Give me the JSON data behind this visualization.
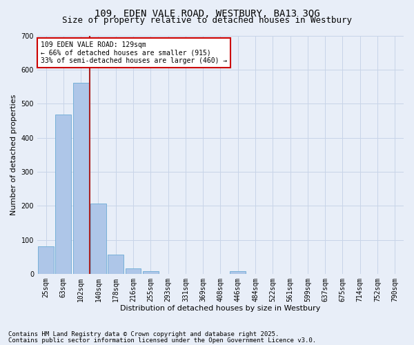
{
  "title_line1": "109, EDEN VALE ROAD, WESTBURY, BA13 3QG",
  "title_line2": "Size of property relative to detached houses in Westbury",
  "xlabel": "Distribution of detached houses by size in Westbury",
  "ylabel": "Number of detached properties",
  "categories": [
    "25sqm",
    "63sqm",
    "102sqm",
    "140sqm",
    "178sqm",
    "216sqm",
    "255sqm",
    "293sqm",
    "331sqm",
    "369sqm",
    "408sqm",
    "446sqm",
    "484sqm",
    "522sqm",
    "561sqm",
    "599sqm",
    "637sqm",
    "675sqm",
    "714sqm",
    "752sqm",
    "790sqm"
  ],
  "values": [
    80,
    468,
    562,
    207,
    57,
    15,
    7,
    0,
    0,
    0,
    0,
    7,
    0,
    0,
    0,
    0,
    0,
    0,
    0,
    0,
    0
  ],
  "bar_color": "#aec6e8",
  "bar_edge_color": "#6aaad4",
  "grid_color": "#c8d4e8",
  "background_color": "#e8eef8",
  "vline_color": "#aa2222",
  "annotation_text": "109 EDEN VALE ROAD: 129sqm\n← 66% of detached houses are smaller (915)\n33% of semi-detached houses are larger (460) →",
  "annotation_box_color": "white",
  "annotation_box_edge": "#cc0000",
  "ylim": [
    0,
    700
  ],
  "yticks": [
    0,
    100,
    200,
    300,
    400,
    500,
    600,
    700
  ],
  "title_fontsize": 10,
  "subtitle_fontsize": 9,
  "axis_label_fontsize": 8,
  "tick_fontsize": 7,
  "annotation_fontsize": 7,
  "footer_fontsize": 6.5,
  "footer_line1": "Contains HM Land Registry data © Crown copyright and database right 2025.",
  "footer_line2": "Contains public sector information licensed under the Open Government Licence v3.0."
}
